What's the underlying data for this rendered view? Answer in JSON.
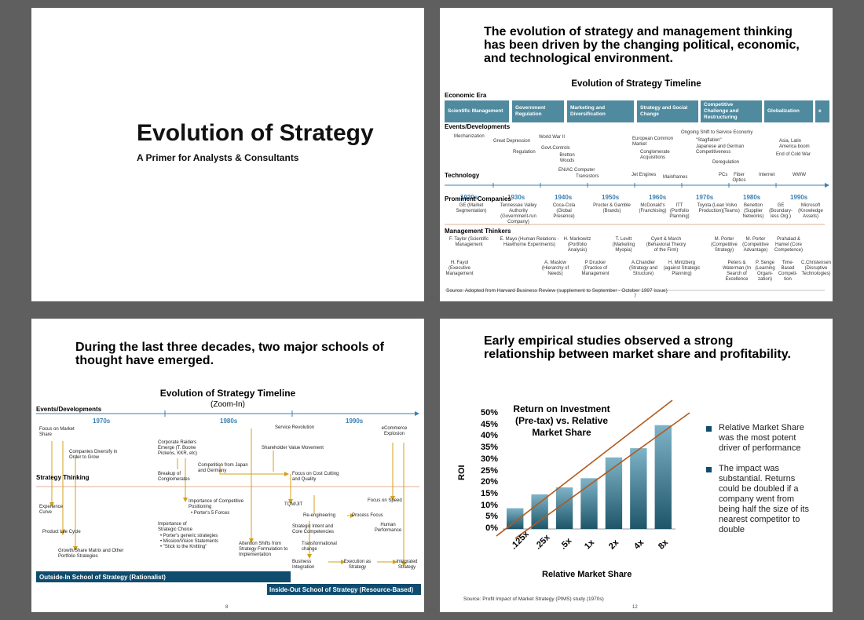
{
  "slide1": {
    "title": "Evolution of Strategy",
    "subtitle": "A Primer for Analysts & Consultants"
  },
  "slide2": {
    "headline": "The evolution of strategy and management thinking has been driven by the changing political, economic, and technological environment.",
    "timeline_title": "Evolution of Strategy Timeline",
    "economic_era_label": "Economic Era",
    "eras": [
      "Scientific Management",
      "Government Regulation",
      "Marketing and Diversification",
      "Strategy and Social Change",
      "Competitive Challenge and Restructuring",
      "Globalization",
      "e"
    ],
    "events_label": "Events/Developments",
    "events": [
      "Mechanization",
      "Great Depression",
      "Regulation",
      "World War II",
      "Govt.Controls",
      "Bretton Woods",
      "European Common Market",
      "Conglomerate Acquisitions",
      "Ongoing Shift to Service Economy",
      "\"Stagflation\"",
      "Japanese and German Competitiveness",
      "Deregulation",
      "Asia, Latin America boom",
      "End of Cold War"
    ],
    "technology_label": "Technology",
    "technology": [
      "ENIAC Computer",
      "Transistors",
      "Jet Engines",
      "Mainframes",
      "PCs",
      "Fiber Optics",
      "Internet",
      "WWW"
    ],
    "decades": [
      "1920s",
      "1930s",
      "1940s",
      "1950s",
      "1960s",
      "1970s",
      "1980s",
      "1990s"
    ],
    "companies_label": "Prominent Companies",
    "companies": [
      "GE (Market Segmentation)",
      "Tennessee Valley Authority (Government-run Company)",
      "Coca-Cola (Global Presence)",
      "Procter & Gamble (Brands)",
      "McDonald's (Franchising)",
      "ITT (Portfolio Planning)",
      "Toyota (Lean Production)",
      "Volvo (Teams)",
      "Benetton (Supplier Networks)",
      "GE (Boundary-less Org.)",
      "Microsoft (Knowledge Assets)"
    ],
    "thinkers_label": "Management Thinkers",
    "thinkers": [
      "F. Taylor (Scientific Management",
      "E. Mayo (Human Relations - Hawthorne Experiments)",
      "H. Markowitz (Portfolio Analysis)",
      "T. Levitt (Marketing Myopia)",
      "Cyert & March (Behavioral Theory of the Firm)",
      "M. Porter (Competitive Strategy)",
      "M. Porter (Competitive Advantage)",
      "Prahalad & Hamel (Core Competence)",
      "H. Fayol (Executive Management",
      "A. Maslow (Hierarchy of Needs)",
      "P Drucker (Practice of Management",
      "A.Chandler (Strategy and Structure)",
      "H. Mintzberg (against Strategic Planning)",
      "Peters & Waterman (In Search of Excellence",
      "P. Senge (Learning Organi-zation)",
      "Time-Based Competi-tion",
      "C.Christensen (Disruptive Technologies)"
    ],
    "source": "Source: Adopted from Harvard Business Review (supplement to September - October 1997 issue)",
    "page": "7"
  },
  "slide3": {
    "headline": "During the last three decades, two major schools of thought have emerged.",
    "timeline_title": "Evolution of Strategy Timeline",
    "zoom_label": "(Zoom-In)",
    "events_label": "Events/Developments",
    "decades": [
      "1970s",
      "1980s",
      "1990s"
    ],
    "strategy_thinking_label": "Strategy Thinking",
    "items": [
      "Focus on Market Share",
      "Companies Diversify in Order to Grow",
      "Corporate Raiders Emerge (T. Boone Pickens, KKR, etc)",
      "Service Revolution",
      "eCommerce Explosion",
      "Shareholder Value Movement",
      "Competition from Japan and Germany",
      "Breakup of Conglomerates",
      "Focus on Cost Cutting and Quality",
      "Importance of Competitive Positioning",
      "• Porter's 5 Forces",
      "Experience Curve",
      "TQM/JIT",
      "Focus on Speed",
      "Re-engineering",
      "Process Focus",
      "Importance of Strategic Choice",
      "• Porter's generic strategies",
      "• Mission/Vision Statements",
      "• \"Stick to the Knitting\"",
      "Strategic Intent and Core Competencies",
      "Human Performance",
      "Product Life Cycle",
      "Attention Shifts from Strategy Formulation to Implementation",
      "Transformational change",
      "Growth/Share Matrix and Other Portfolio Strategies",
      "Business Integration",
      "Execution as Strategy",
      "Integrated Strategy"
    ],
    "outside_in": "Outside-In School of Strategy (Rationalist)",
    "inside_out": "Inside-Out School of Strategy (Resource-Based)",
    "page": "8"
  },
  "slide4": {
    "headline": "Early empirical studies observed a strong relationship between market share and profitability.",
    "bullets": [
      "Relative Market Share was the most potent driver of performance",
      "The impact was substantial. Returns could be doubled if a company went from being half the size of its nearest competitor to double"
    ],
    "source": "Source: Profit Impact of Market Strategy (PIMS) study (1970s)",
    "page": "12"
  },
  "chart_data": {
    "type": "bar",
    "title": "Return on Investment (Pre-tax) vs. Relative Market Share",
    "xlabel": "Relative Market Share",
    "ylabel": "ROI",
    "categories": [
      ".125x",
      ".25x",
      ".5x",
      "1x",
      "2x",
      "4x",
      "8x"
    ],
    "values": [
      9,
      15,
      18,
      22,
      31,
      35,
      45
    ],
    "ylim": [
      0,
      50
    ],
    "yticks": [
      "0%",
      "5%",
      "10%",
      "15%",
      "20%",
      "25%",
      "30%",
      "35%",
      "40%",
      "45%",
      "50%"
    ],
    "bar_color": "#5a8fa3",
    "trend_color": "#b05a1e",
    "grid": false
  }
}
